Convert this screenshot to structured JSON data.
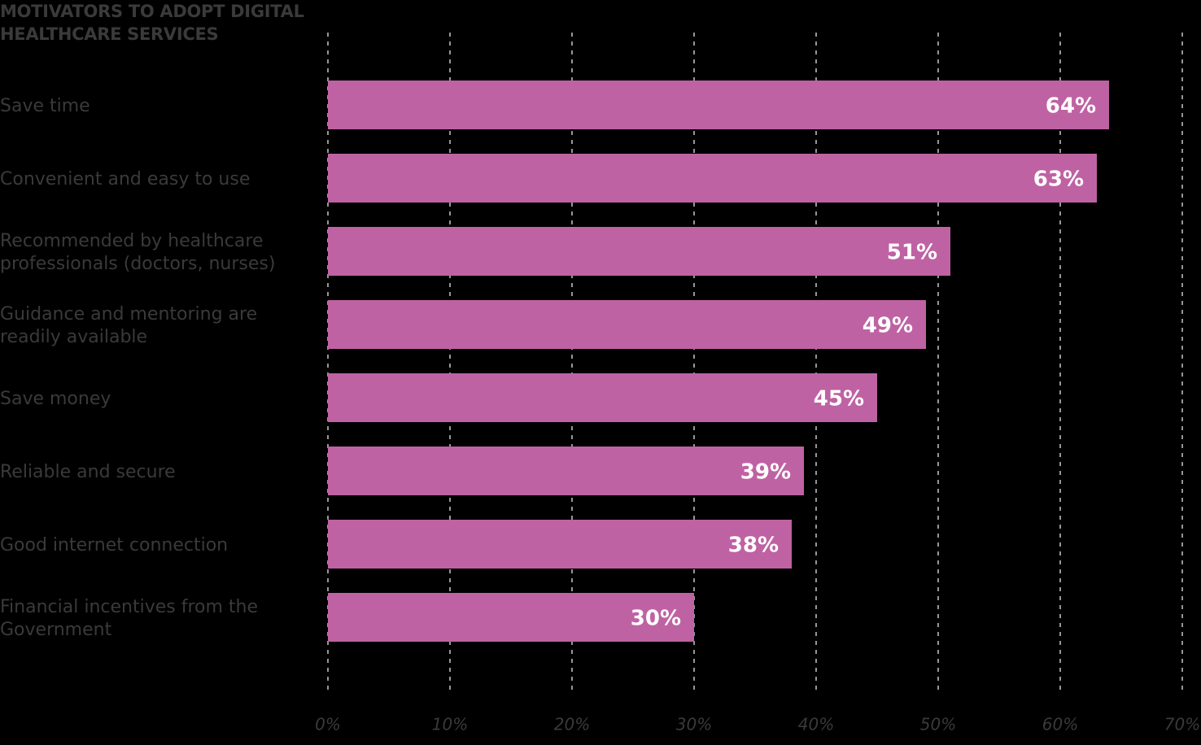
{
  "chart_data": {
    "type": "bar",
    "orientation": "horizontal",
    "title": "MOTIVATORS TO ADOPT DIGITAL HEALTHCARE SERVICES",
    "categories": [
      "Save time",
      "Convenient and easy to use",
      "Recommended by healthcare professionals (doctors, nurses)",
      "Guidance and mentoring are readily available",
      "Save money",
      "Reliable and secure",
      "Good internet connection",
      "Financial incentives from the Government"
    ],
    "values": [
      64,
      63,
      51,
      49,
      45,
      39,
      38,
      30
    ],
    "value_labels": [
      "64%",
      "63%",
      "51%",
      "49%",
      "45%",
      "39%",
      "38%",
      "30%"
    ],
    "color": "#bf62a3",
    "xlim": [
      0,
      70
    ],
    "xticks": [
      {
        "value": 0,
        "label": "0%"
      },
      {
        "value": 10,
        "label": "10%"
      },
      {
        "value": 20,
        "label": "20%"
      },
      {
        "value": 30,
        "label": "30%"
      },
      {
        "value": 40,
        "label": "40%"
      },
      {
        "value": 50,
        "label": "50%"
      },
      {
        "value": 60,
        "label": "60%"
      },
      {
        "value": 70,
        "label": "70%"
      }
    ],
    "grid": true
  }
}
